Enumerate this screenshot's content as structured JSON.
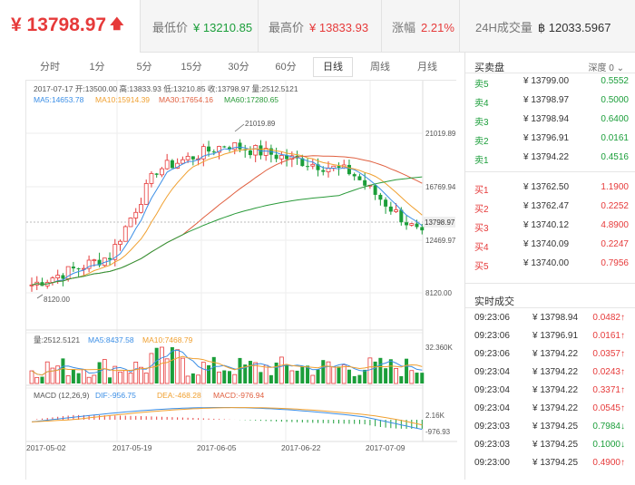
{
  "header": {
    "price": "¥ 13798.97",
    "low_label": "最低价",
    "low_value": "¥ 13210.85",
    "high_label": "最高价",
    "high_value": "¥ 13833.93",
    "change_label": "涨幅",
    "change_value": "2.21%",
    "vol24_label": "24H成交量",
    "vol24_value": "฿ 12033.5967"
  },
  "tabs": [
    "分时",
    "1分",
    "5分",
    "15分",
    "30分",
    "60分",
    "日线",
    "周线",
    "月线"
  ],
  "active_tab": "日线",
  "kline": {
    "info_line": "2017-07-17  开:13500.00  高:13833.93  低:13210.85  收:13798.97  量:2512.5121",
    "ma5": "MA5:14653.78",
    "ma10": "MA10:15914.39",
    "ma30": "MA30:17654.16",
    "ma60": "MA60:17280.65",
    "price_ticks": [
      "21019.89",
      "16769.94",
      "12469.97",
      "8120.00"
    ],
    "current_label": "13798.97",
    "max_marker": "21019.89",
    "min_marker": "8120.00",
    "vol_title": "量:2512.5121",
    "vol_ma5": "MA5:8437.58",
    "vol_ma10": "MA10:7468.79",
    "vol_tick": "32.360K",
    "macd_title": "MACD (12,26,9)",
    "macd_dif": "DIF:-956.75",
    "macd_dea": "DEA:-468.28",
    "macd_val": "MACD:-976.94",
    "macd_top": "2.16K",
    "macd_bottom": "-976.93",
    "dates": [
      "2017-05-02",
      "2017-05-19",
      "2017-06-05",
      "2017-06-22",
      "2017-07-09"
    ]
  },
  "orderbook": {
    "title": "买卖盘",
    "depth": "深度 0 ⌄",
    "asks": [
      {
        "label": "卖5",
        "price": "¥ 13799.00",
        "amount": "0.5552"
      },
      {
        "label": "卖4",
        "price": "¥ 13798.97",
        "amount": "0.5000"
      },
      {
        "label": "卖3",
        "price": "¥ 13798.94",
        "amount": "0.6400"
      },
      {
        "label": "卖2",
        "price": "¥ 13796.91",
        "amount": "0.0161"
      },
      {
        "label": "卖1",
        "price": "¥ 13794.22",
        "amount": "0.4516"
      }
    ],
    "bids": [
      {
        "label": "买1",
        "price": "¥ 13762.50",
        "amount": "1.1900"
      },
      {
        "label": "买2",
        "price": "¥ 13762.47",
        "amount": "0.2252"
      },
      {
        "label": "买3",
        "price": "¥ 13740.12",
        "amount": "4.8900"
      },
      {
        "label": "买4",
        "price": "¥ 13740.09",
        "amount": "0.2247"
      },
      {
        "label": "买5",
        "price": "¥ 13740.00",
        "amount": "0.7956"
      }
    ]
  },
  "trades": {
    "title": "实时成交",
    "rows": [
      {
        "time": "09:23:06",
        "price": "¥ 13798.94",
        "amount": "0.0482↑",
        "dir": "up"
      },
      {
        "time": "09:23:06",
        "price": "¥ 13796.91",
        "amount": "0.0161↑",
        "dir": "up"
      },
      {
        "time": "09:23:06",
        "price": "¥ 13794.22",
        "amount": "0.0357↑",
        "dir": "up"
      },
      {
        "time": "09:23:04",
        "price": "¥ 13794.22",
        "amount": "0.0243↑",
        "dir": "up"
      },
      {
        "time": "09:23:04",
        "price": "¥ 13794.22",
        "amount": "0.3371↑",
        "dir": "up"
      },
      {
        "time": "09:23:04",
        "price": "¥ 13794.22",
        "amount": "0.0545↑",
        "dir": "up"
      },
      {
        "time": "09:23:03",
        "price": "¥ 13794.25",
        "amount": "0.7984↓",
        "dir": "down"
      },
      {
        "time": "09:23:03",
        "price": "¥ 13794.25",
        "amount": "0.1000↓",
        "dir": "down"
      },
      {
        "time": "09:23:00",
        "price": "¥ 13794.25",
        "amount": "0.4900↑",
        "dir": "up"
      }
    ]
  },
  "colors": {
    "up": "#e63a3a",
    "down": "#1b9e3a",
    "ma5": "#3a8ee6",
    "ma10": "#f0a030",
    "ma30": "#e06040",
    "ma60": "#2a9a3a"
  }
}
